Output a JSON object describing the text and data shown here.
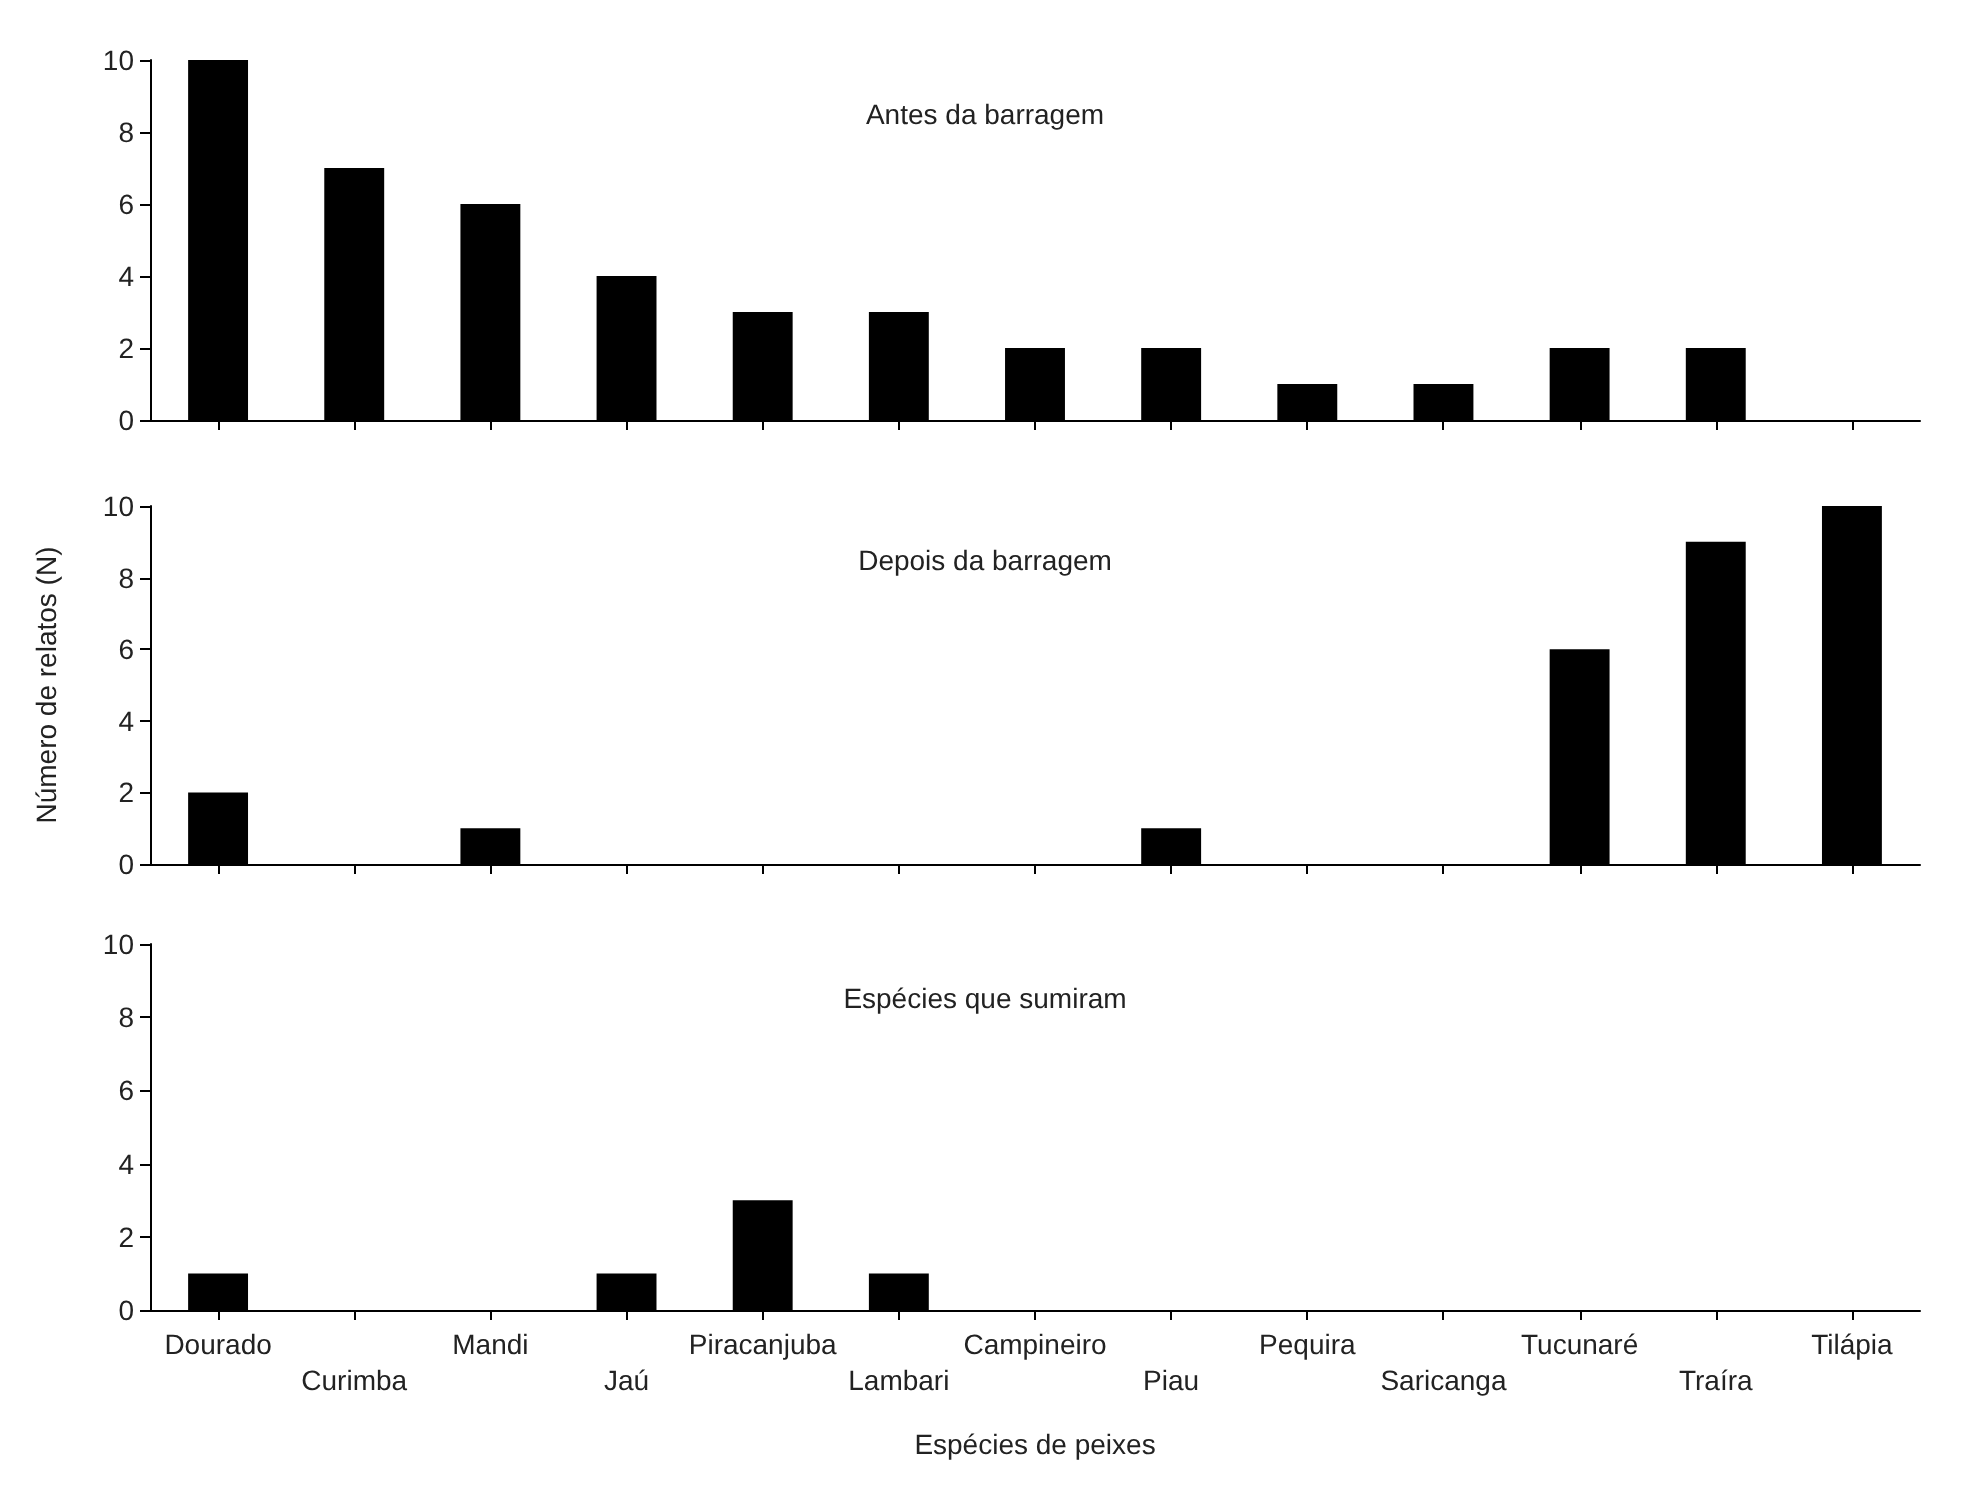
{
  "chart_data": [
    {
      "type": "bar",
      "title": "Antes da barragem",
      "categories": [
        null,
        null,
        null,
        null,
        null,
        null,
        null,
        null,
        null,
        null,
        null,
        null,
        null
      ],
      "values": [
        10,
        7,
        6,
        4,
        3,
        3,
        2,
        2,
        1,
        1,
        2,
        2,
        0
      ],
      "color": "#000000",
      "ylim": [
        0,
        10
      ],
      "yticks": [
        0,
        2,
        4,
        6,
        8,
        10
      ],
      "tick_labels": "y",
      "grid": false
    },
    {
      "type": "bar",
      "title": "Depois da barragem",
      "ylabel": "Número de relatos (N)",
      "categories": [
        null,
        null,
        null,
        null,
        null,
        null,
        null,
        null,
        null,
        null,
        null,
        null,
        null
      ],
      "values": [
        2,
        0,
        1,
        0,
        0,
        0,
        0,
        1,
        0,
        0,
        6,
        9,
        10
      ],
      "color": "#000000",
      "ylim": [
        0,
        10
      ],
      "yticks": [
        0,
        2,
        4,
        6,
        8,
        10
      ],
      "tick_labels": "y",
      "grid": false
    },
    {
      "type": "bar",
      "title": "Espécies que sumiram",
      "xlabel": "Espécies de peixes",
      "categories": [
        "Dourado",
        "Curimba",
        "Mandi",
        "Jaú",
        "Piracanjuba",
        "Lambari",
        "Campineiro",
        "Piau",
        "Pequira",
        "Saricanga",
        "Tucunaré",
        "Traíra",
        "Tilápia"
      ],
      "values": [
        1,
        0,
        0,
        1,
        3,
        1,
        0,
        0,
        0,
        0,
        0,
        0,
        0
      ],
      "color": "#000000",
      "ylim": [
        0,
        10
      ],
      "yticks": [
        0,
        2,
        4,
        6,
        8,
        10
      ],
      "grid": false
    }
  ]
}
